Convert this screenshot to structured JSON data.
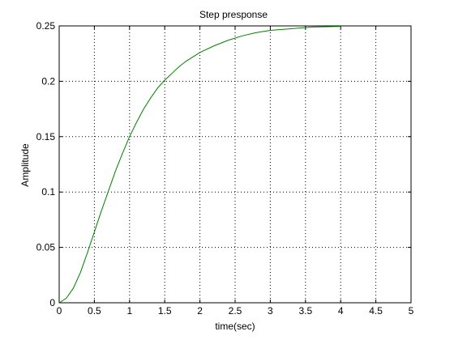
{
  "chart_data": {
    "type": "line",
    "title": "Step presponse",
    "xlabel": "time(sec)",
    "ylabel": "Amplitude",
    "xlim": [
      0,
      5
    ],
    "ylim": [
      0,
      0.25
    ],
    "xticks": [
      0,
      0.5,
      1,
      1.5,
      2,
      2.5,
      3,
      3.5,
      4,
      4.5,
      5
    ],
    "xtick_labels": [
      "0",
      "0.5",
      "1",
      "1.5",
      "2",
      "2.5",
      "3",
      "3.5",
      "4",
      "4.5",
      "5"
    ],
    "yticks": [
      0,
      0.05,
      0.1,
      0.15,
      0.2,
      0.25
    ],
    "ytick_labels": [
      "0",
      "0.05",
      "0.1",
      "0.15",
      "0.2",
      "0.25"
    ],
    "grid": true,
    "series": [
      {
        "color": "#008000",
        "x": [
          0,
          0.1,
          0.2,
          0.3,
          0.4,
          0.5,
          0.6,
          0.7,
          0.8,
          0.9,
          1.0,
          1.1,
          1.2,
          1.3,
          1.4,
          1.5,
          1.6,
          1.7,
          1.8,
          1.9,
          2.0,
          2.2,
          2.4,
          2.6,
          2.8,
          3.0,
          3.2,
          3.4,
          3.6,
          3.8,
          4.0
        ],
        "y": [
          0,
          0.004,
          0.013,
          0.027,
          0.045,
          0.064,
          0.083,
          0.101,
          0.119,
          0.135,
          0.15,
          0.163,
          0.175,
          0.185,
          0.194,
          0.201,
          0.207,
          0.213,
          0.218,
          0.222,
          0.226,
          0.232,
          0.237,
          0.241,
          0.244,
          0.246,
          0.247,
          0.248,
          0.249,
          0.2493,
          0.2495
        ]
      }
    ]
  }
}
